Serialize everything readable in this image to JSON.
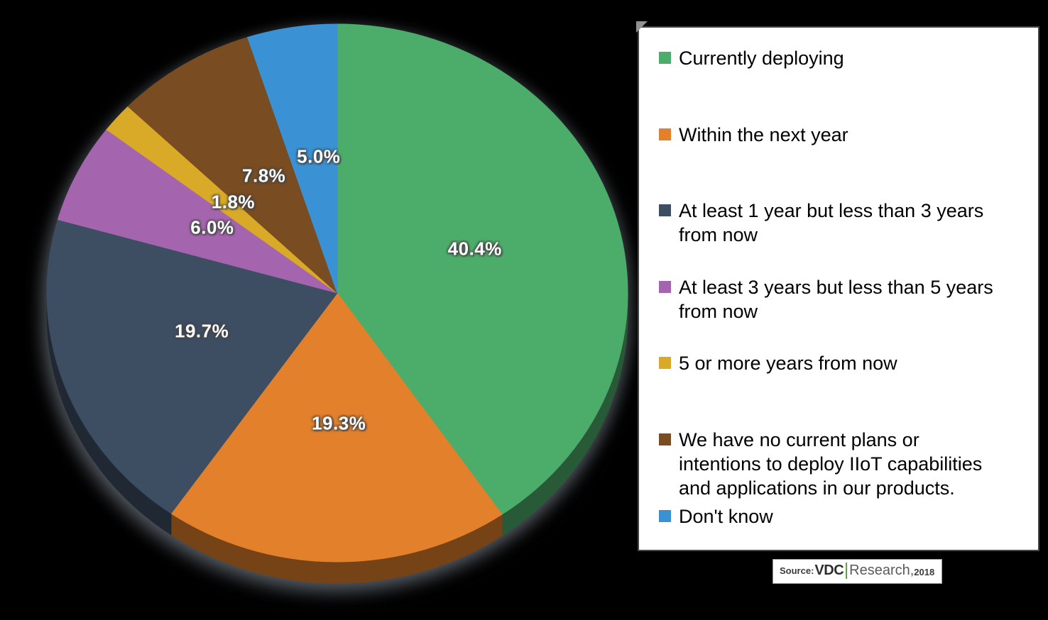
{
  "background_color": "#000000",
  "chart_data": {
    "type": "pie",
    "title": "",
    "unit": "percent",
    "start_angle_deg": 0,
    "direction": "clockwise",
    "labels_inside": true,
    "label_format": "0.0%",
    "label_color": "#FFFFFF",
    "effect_3d": true,
    "legend_position": "right",
    "slices": [
      {
        "label": "Currently deploying",
        "legend_label": "Currently deploying",
        "value": 40.4,
        "color": "#4CAD6B"
      },
      {
        "label": "Within the next year",
        "legend_label": "Within the next year",
        "value": 19.3,
        "color": "#E2802B"
      },
      {
        "label": "At least 1 year but less than 3 years from now",
        "legend_label": "At least 1 year but less than 3 years\nfrom now",
        "value": 19.7,
        "color": "#3D4D62"
      },
      {
        "label": "At least 3 years but less than 5 years from now",
        "legend_label": "At least 3 years but less than 5 years\nfrom now",
        "value": 6.0,
        "color": "#A565AE"
      },
      {
        "label": "5 or more years from now",
        "legend_label": "5 or more years from now",
        "value": 1.8,
        "color": "#D9A928"
      },
      {
        "label": "We have no current plans or intentions to deploy IIoT capabilities and applications in our products.",
        "legend_label": "We have no current plans or\nintentions to deploy IIoT capabilities\nand applications in our products.",
        "value": 7.8,
        "color": "#794C22"
      },
      {
        "label": "Don't know",
        "legend_label": "Don't know",
        "value": 5.0,
        "color": "#3A92D4"
      }
    ]
  },
  "legend": {
    "background": "#FFFFFF",
    "border_color": "#464646",
    "text_color": "#000000"
  },
  "source": {
    "prefix": "Source:",
    "brand": "VDC",
    "name": "Research,",
    "year": "2018",
    "divider_color": "#61A144"
  }
}
